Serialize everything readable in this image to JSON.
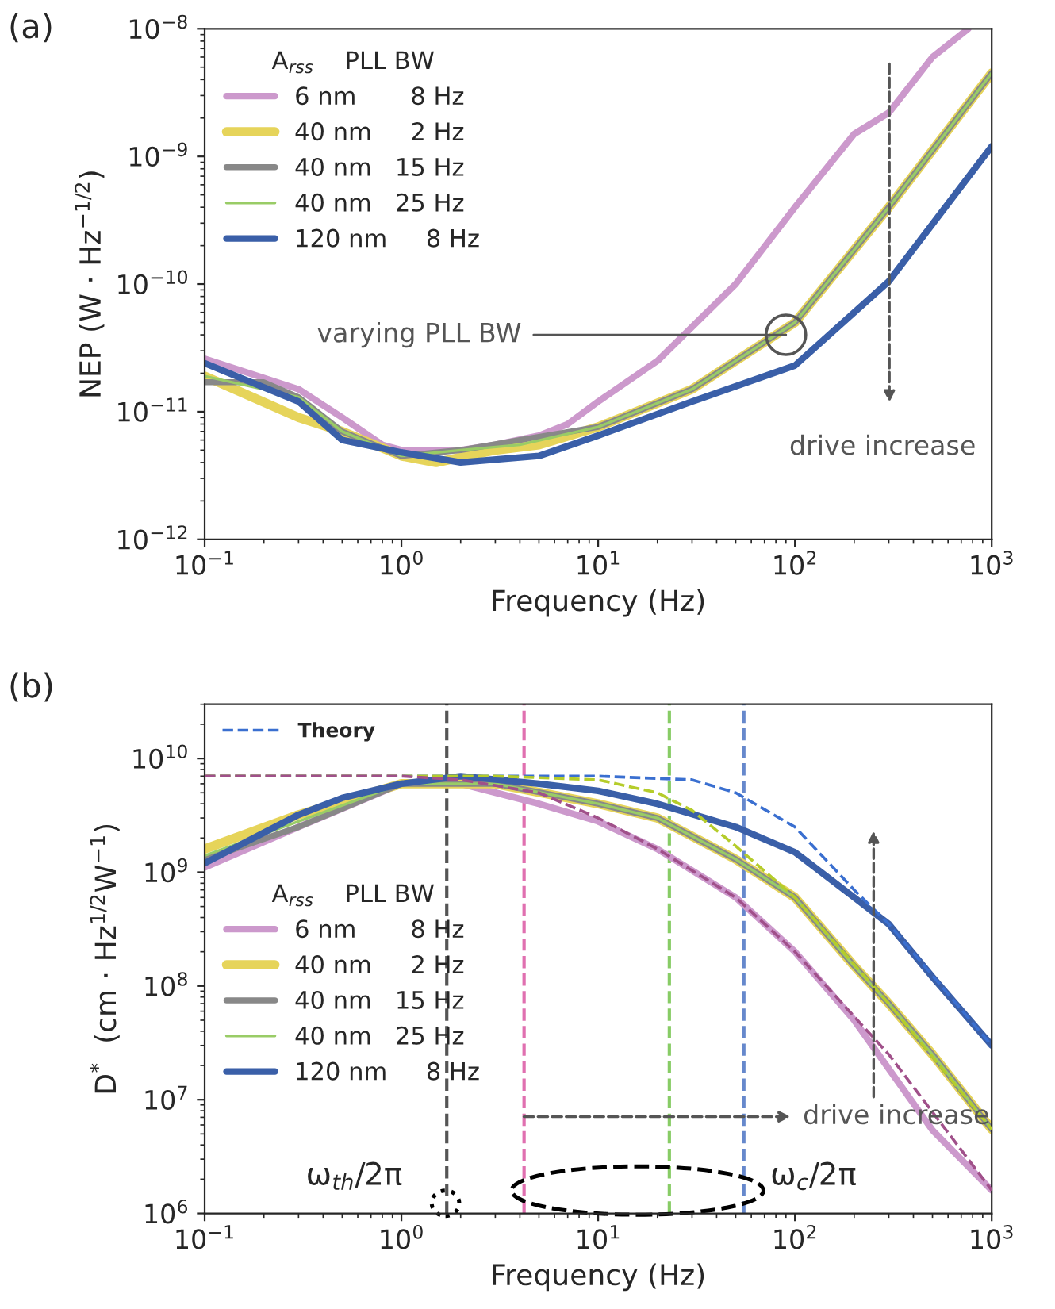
{
  "chart_data": [
    {
      "type": "line",
      "title": "(a)",
      "xlabel": "Frequency (Hz)",
      "ylabel": "NEP (W · Hz$^{−1/2}$)",
      "legend_title": "A$_{rss}$    PLL BW",
      "log": "xy",
      "grid": false,
      "legend": "top left",
      "line_style": "solid",
      "marker": "none",
      "xlim": [
        0.1,
        1000
      ],
      "xticks": [
        {
          "value": 0.1,
          "label": "10$^{−1}$"
        },
        {
          "value": 1,
          "label": "10$^{0}$"
        },
        {
          "value": 10,
          "label": "10$^{1}$"
        },
        {
          "value": 100,
          "label": "10$^{2}$"
        },
        {
          "value": 1000,
          "label": "10$^{3}$"
        }
      ],
      "ylim": [
        1e-12,
        1e-08
      ],
      "yticks": [
        {
          "value": 1e-12,
          "label": "10$^{−12}$"
        },
        {
          "value": 1e-11,
          "label": "10$^{−11}$"
        },
        {
          "value": 1e-10,
          "label": "10$^{−10}$"
        },
        {
          "value": 1e-09,
          "label": "10$^{−9}$"
        },
        {
          "value": 1e-08,
          "label": "10$^{−8}$"
        }
      ],
      "series": [
        {
          "name": "6 nm       8 Hz",
          "color": "#cc99cc",
          "x": [
            0.1,
            0.3,
            0.5,
            0.8,
            1,
            2,
            3,
            5,
            7,
            10,
            20,
            50,
            100,
            200,
            300,
            500,
            760
          ],
          "values": [
            2.6e-11,
            1.5e-11,
            9e-12,
            5.5e-12,
            5e-12,
            5e-12,
            5.5e-12,
            6.5e-12,
            8e-12,
            1.2e-11,
            2.5e-11,
            1e-10,
            4e-10,
            1.5e-09,
            2.2e-09,
            6e-09,
            1e-08
          ]
        },
        {
          "name": "40 nm     2 Hz",
          "color": "#e6d45a",
          "x": [
            0.1,
            0.3,
            0.5,
            1,
            1.5,
            3,
            5,
            10,
            30,
            50,
            100,
            300,
            1000
          ],
          "values": [
            1.9e-11,
            9e-12,
            7e-12,
            4.5e-12,
            4e-12,
            5e-12,
            5.5e-12,
            7.6e-12,
            1.5e-11,
            2.5e-11,
            5e-11,
            4e-10,
            4.5e-09
          ]
        },
        {
          "name": "40 nm   15 Hz",
          "color": "#888888",
          "x": [
            0.1,
            0.2,
            0.3,
            0.5,
            1,
            2,
            4,
            10,
            30,
            50,
            100,
            300,
            1000
          ],
          "values": [
            1.7e-11,
            1.7e-11,
            1.3e-11,
            7e-12,
            4.5e-12,
            5e-12,
            6e-12,
            7.6e-12,
            1.5e-11,
            2.5e-11,
            5e-11,
            4e-10,
            4.5e-09
          ]
        },
        {
          "name": "40 nm   25 Hz",
          "color": "#99cc66",
          "x": [
            0.1,
            0.3,
            0.5,
            1,
            2,
            4,
            10,
            30,
            50,
            100,
            300,
            1000
          ],
          "values": [
            1.9e-11,
            1.3e-11,
            7e-12,
            4.5e-12,
            5e-12,
            5.5e-12,
            7.6e-12,
            1.5e-11,
            2.5e-11,
            5e-11,
            4e-10,
            4.5e-09
          ]
        },
        {
          "name": "120 nm     8 Hz",
          "color": "#3a5fa8",
          "x": [
            0.1,
            0.3,
            0.5,
            1,
            2,
            5,
            10,
            30,
            100,
            300,
            1000
          ],
          "values": [
            2.4e-11,
            1.2e-11,
            6e-12,
            4.8e-12,
            4e-12,
            4.5e-12,
            6.5e-12,
            1.2e-11,
            2.3e-11,
            1.05e-10,
            1.2e-09
          ]
        }
      ],
      "annotations": [
        {
          "text": "varying PLL BW",
          "x": 90,
          "y": 4e-11
        },
        "drive increase"
      ]
    },
    {
      "type": "line",
      "title": "(b)",
      "xlabel": "Frequency (Hz)",
      "ylabel": "D$^{*}$  (cm · Hz$^{1/2}$W$^{−1}$)",
      "legend_title": "A$_{rss}$    PLL BW",
      "log": "xy",
      "grid": false,
      "legend": "left",
      "line_style": "solid",
      "marker": "none",
      "xlim": [
        0.1,
        1000
      ],
      "xticks": [
        {
          "value": 0.1,
          "label": "10$^{−1}$"
        },
        {
          "value": 1,
          "label": "10$^{0}$"
        },
        {
          "value": 10,
          "label": "10$^{1}$"
        },
        {
          "value": 100,
          "label": "10$^{2}$"
        },
        {
          "value": 1000,
          "label": "10$^{3}$"
        }
      ],
      "ylim": [
        1000000.0,
        30000000000.0
      ],
      "yticks": [
        {
          "value": 1000000.0,
          "label": "10$^{6}$"
        },
        {
          "value": 10000000.0,
          "label": "10$^{7}$"
        },
        {
          "value": 100000000.0,
          "label": "10$^{8}$"
        },
        {
          "value": 1000000000.0,
          "label": "10$^{9}$"
        },
        {
          "value": 10000000000.0,
          "label": "10$^{10}$"
        }
      ],
      "series": [
        {
          "name": "6 nm       8 Hz",
          "color": "#cc99cc",
          "x": [
            0.1,
            0.3,
            1,
            2,
            5,
            10,
            20,
            50,
            100,
            200,
            500,
            1000
          ],
          "values": [
            1100000000.0,
            2500000000.0,
            6000000000.0,
            6000000000.0,
            4000000000.0,
            2800000000.0,
            1600000000.0,
            600000000.0,
            200000000.0,
            50000000.0,
            5400000.0,
            1600000.0
          ]
        },
        {
          "name": "40 nm     2 Hz",
          "color": "#e6d45a",
          "x": [
            0.1,
            0.3,
            1,
            3,
            10,
            20,
            50,
            100,
            200,
            300,
            500,
            1000
          ],
          "values": [
            1600000000.0,
            3200000000.0,
            6000000000.0,
            6000000000.0,
            4000000000.0,
            3000000000.0,
            1300000000.0,
            600000000.0,
            150000000.0,
            70000000.0,
            25000000.0,
            5500000.0
          ]
        },
        {
          "name": "40 nm   15 Hz",
          "color": "#888888",
          "x": [
            0.1,
            0.3,
            1,
            3,
            10,
            20,
            50,
            100,
            200,
            300,
            500,
            1000
          ],
          "values": [
            1300000000.0,
            2500000000.0,
            6000000000.0,
            6000000000.0,
            4000000000.0,
            3000000000.0,
            1300000000.0,
            600000000.0,
            150000000.0,
            70000000.0,
            25000000.0,
            5500000.0
          ]
        },
        {
          "name": "40 nm   25 Hz",
          "color": "#99cc66",
          "x": [
            0.1,
            0.3,
            1,
            3,
            10,
            20,
            50,
            100,
            200,
            300,
            500,
            1000
          ],
          "values": [
            1400000000.0,
            2800000000.0,
            6000000000.0,
            6000000000.0,
            4000000000.0,
            3000000000.0,
            1300000000.0,
            600000000.0,
            150000000.0,
            70000000.0,
            25000000.0,
            5500000.0
          ]
        },
        {
          "name": "120 nm     8 Hz",
          "color": "#3a5fa8",
          "x": [
            0.1,
            0.3,
            0.5,
            1,
            2,
            5,
            10,
            20,
            50,
            100,
            200,
            300,
            500,
            1000
          ],
          "values": [
            1200000000.0,
            3200000000.0,
            4500000000.0,
            6000000000.0,
            7000000000.0,
            6000000000.0,
            5200000000.0,
            4000000000.0,
            2500000000.0,
            1500000000.0,
            600000000.0,
            350000000.0,
            120000000.0,
            30000000.0
          ]
        },
        {
          "name": "Theory",
          "color": "#3a6fd0",
          "line_style": "dashed",
          "x": [
            0.1,
            1,
            10,
            30,
            50,
            100,
            200,
            300,
            1000
          ],
          "values": [
            7000000000.0,
            7000000000.0,
            7000000000.0,
            6500000000.0,
            5000000000.0,
            2500000000.0,
            700000000.0,
            350000000.0,
            30000000.0
          ]
        },
        {
          "color": "#b5cc2a",
          "line_style": "dashed",
          "x": [
            0.1,
            1,
            3,
            10,
            20,
            30,
            50,
            100,
            300,
            1000
          ],
          "values": [
            7000000000.0,
            7000000000.0,
            7000000000.0,
            6500000000.0,
            5000000000.0,
            3500000000.0,
            1700000000.0,
            600000000.0,
            70000000.0,
            5500000.0
          ]
        },
        {
          "color": "#a0508a",
          "line_style": "dashed",
          "x": [
            0.1,
            1,
            2,
            5,
            10,
            20,
            50,
            100,
            300,
            1000
          ],
          "values": [
            7000000000.0,
            7000000000.0,
            6500000000.0,
            5000000000.0,
            3000000000.0,
            1600000000.0,
            600000000.0,
            200000000.0,
            25000000.0,
            1600000.0
          ]
        }
      ],
      "ref_lines": [
        {
          "axis": "x",
          "value": 1.7,
          "color": "#555555",
          "line_style": "dashed"
        },
        {
          "axis": "x",
          "value": 4.2,
          "color": "#e070b0",
          "line_style": "dashed"
        },
        {
          "axis": "x",
          "value": 23,
          "color": "#88cc66",
          "line_style": "dashed"
        },
        {
          "axis": "x",
          "value": 55,
          "color": "#6688cc",
          "line_style": "dashed"
        }
      ],
      "annotations": [
        {
          "text": "ω$_{th}$/2π",
          "x": 1.7,
          "y": 1000000.0
        },
        {
          "text": "ω$_{c}$/2π",
          "x": 55,
          "y": 1000000.0
        },
        "drive increase"
      ]
    }
  ]
}
